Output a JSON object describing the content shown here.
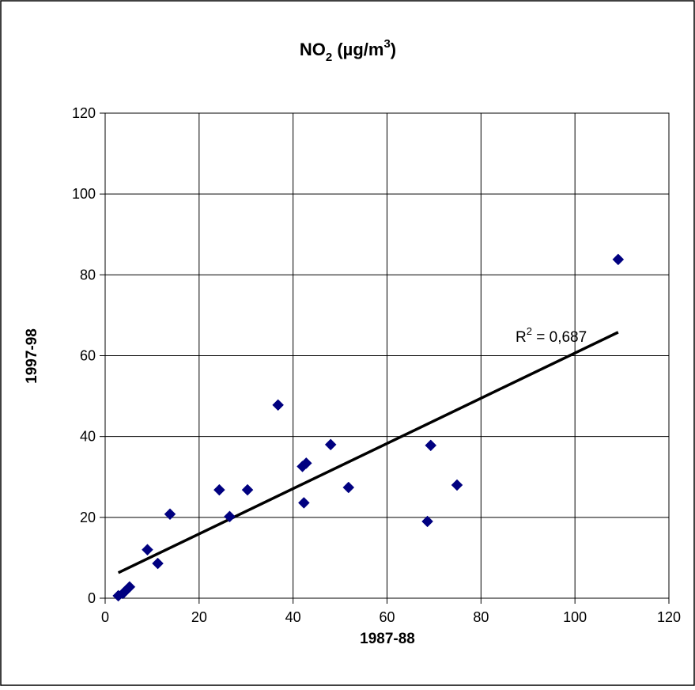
{
  "chart_data": {
    "type": "scatter",
    "title_main": "NO",
    "title_sub": "2",
    "title_rest": " (µg/m",
    "title_sup": "3",
    "title_end": ")",
    "xlabel": "1987-88",
    "ylabel": "1997-98",
    "xlim": [
      0,
      120
    ],
    "ylim": [
      0,
      120
    ],
    "xticks": [
      0,
      20,
      40,
      60,
      80,
      100,
      120
    ],
    "yticks": [
      0,
      20,
      40,
      60,
      80,
      100,
      120
    ],
    "grid": true,
    "marker_color": "#000080",
    "points": [
      {
        "x": 2.8,
        "y": 0.6
      },
      {
        "x": 3.8,
        "y": 1.2
      },
      {
        "x": 4.5,
        "y": 2.0
      },
      {
        "x": 5.2,
        "y": 2.8
      },
      {
        "x": 9.0,
        "y": 12.0
      },
      {
        "x": 11.2,
        "y": 8.6
      },
      {
        "x": 13.8,
        "y": 20.8
      },
      {
        "x": 24.3,
        "y": 26.8
      },
      {
        "x": 26.5,
        "y": 20.2
      },
      {
        "x": 30.3,
        "y": 26.8
      },
      {
        "x": 36.8,
        "y": 47.8
      },
      {
        "x": 42.0,
        "y": 32.6
      },
      {
        "x": 42.8,
        "y": 33.4
      },
      {
        "x": 42.3,
        "y": 23.6
      },
      {
        "x": 48.0,
        "y": 38.0
      },
      {
        "x": 51.8,
        "y": 27.4
      },
      {
        "x": 68.6,
        "y": 19.0
      },
      {
        "x": 69.3,
        "y": 37.8
      },
      {
        "x": 74.9,
        "y": 28.0
      },
      {
        "x": 109.2,
        "y": 83.8
      }
    ],
    "trendline": {
      "x": [
        2.8,
        109.2
      ],
      "y": [
        6.3,
        65.8
      ]
    },
    "annotation_prefix": "R",
    "annotation_sup": "2",
    "annotation_value": " = 0,687"
  }
}
